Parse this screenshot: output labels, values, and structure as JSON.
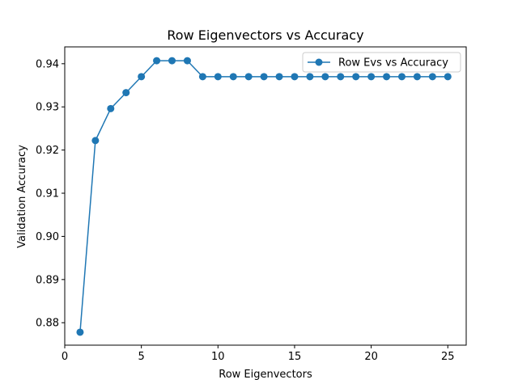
{
  "chart_data": {
    "type": "line",
    "title": "Row Eigenvectors vs Accuracy",
    "xlabel": "Row Eigenvectors",
    "ylabel": "Validation Accuracy",
    "xlim": [
      0,
      26.2
    ],
    "ylim": [
      0.8748,
      0.9439
    ],
    "x_ticks": [
      0,
      5,
      10,
      15,
      20,
      25
    ],
    "x_tick_labels": [
      "0",
      "5",
      "10",
      "15",
      "20",
      "25"
    ],
    "y_ticks": [
      0.88,
      0.89,
      0.9,
      0.91,
      0.92,
      0.93,
      0.94
    ],
    "y_tick_labels": [
      "0.88",
      "0.89",
      "0.90",
      "0.91",
      "0.92",
      "0.93",
      "0.94"
    ],
    "grid": false,
    "legend_position": "top-right",
    "series": [
      {
        "name": "Row Evs vs Accuracy",
        "color": "#1f77b4",
        "marker": "circle",
        "x": [
          1,
          2,
          3,
          4,
          5,
          6,
          7,
          8,
          9,
          10,
          11,
          12,
          13,
          14,
          15,
          16,
          17,
          18,
          19,
          20,
          21,
          22,
          23,
          24,
          25
        ],
        "y": [
          0.8778,
          0.9222,
          0.9296,
          0.9333,
          0.937,
          0.9407,
          0.9407,
          0.9407,
          0.937,
          0.937,
          0.937,
          0.937,
          0.937,
          0.937,
          0.937,
          0.937,
          0.937,
          0.937,
          0.937,
          0.937,
          0.937,
          0.937,
          0.937,
          0.937,
          0.937
        ]
      }
    ]
  }
}
